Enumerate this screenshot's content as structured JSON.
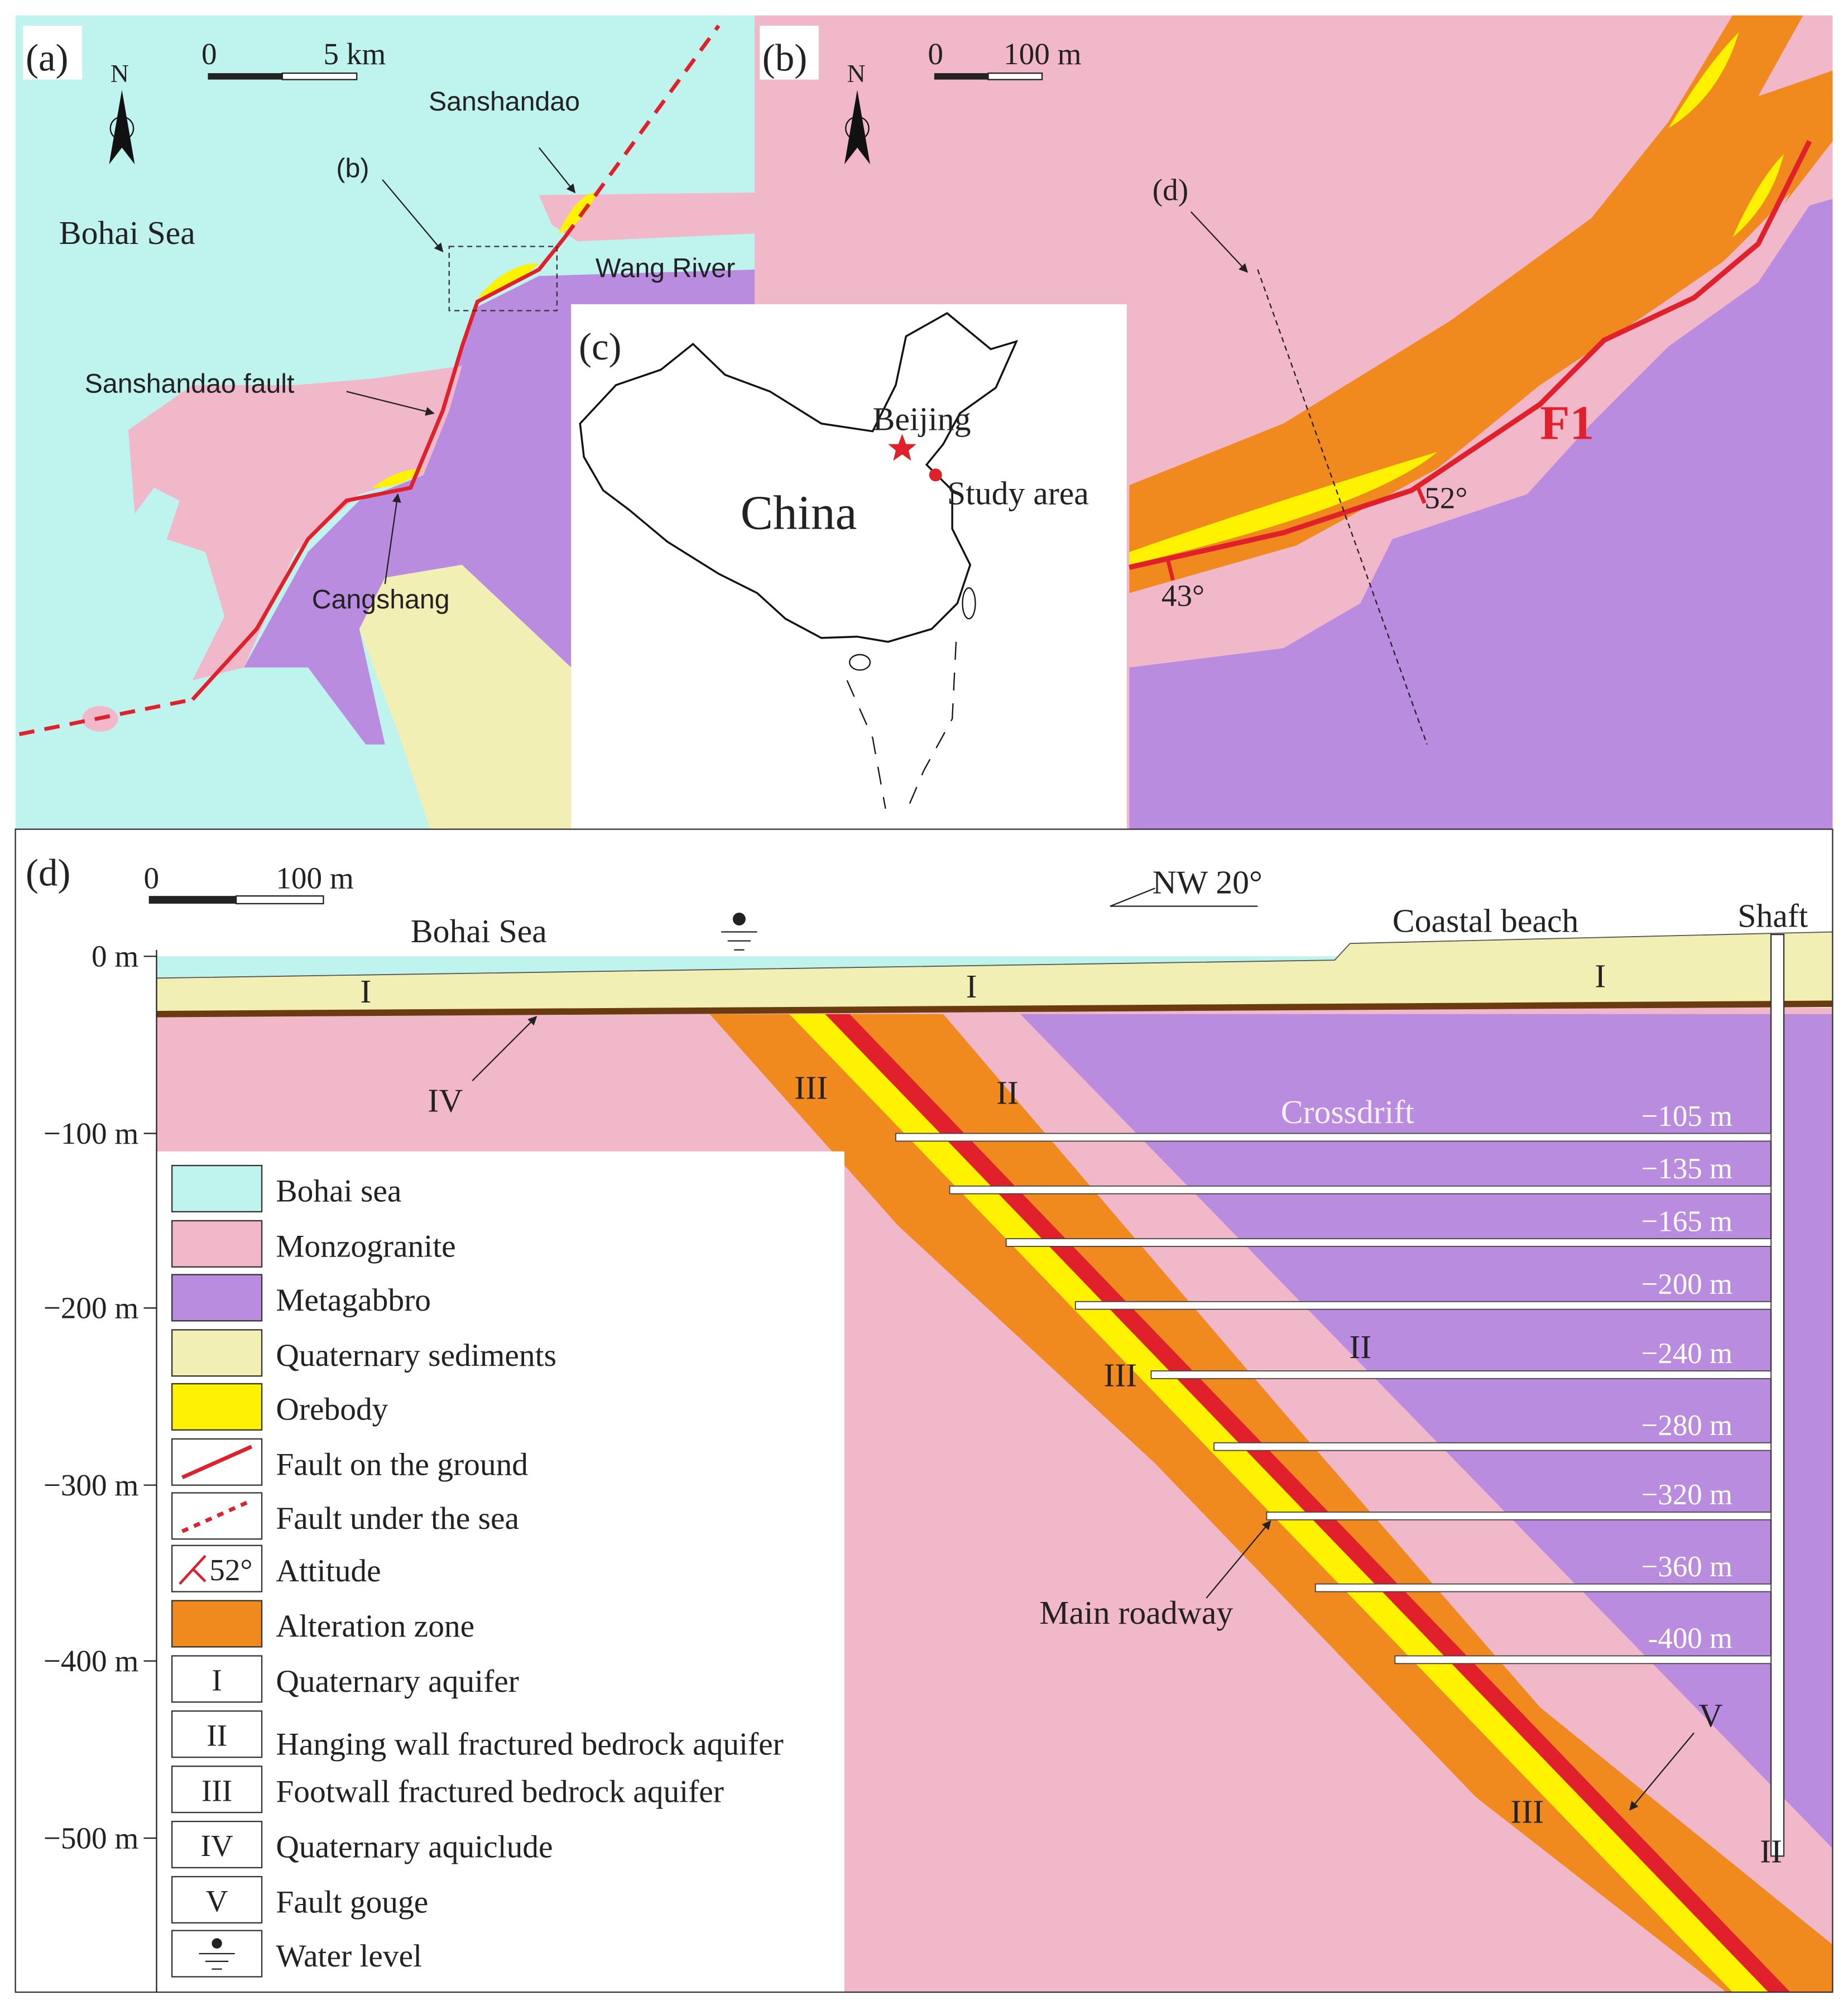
{
  "panel_a": {
    "label": "(a)",
    "scale_start": "0",
    "scale_end": "5 km",
    "north": "N",
    "bohai_sea": "Bohai Sea",
    "sanshandao": "Sanshandao",
    "inset_ref": "(b)",
    "wang_river": "Wang River",
    "fault": "Sanshandao fault",
    "cangshang": "Cangshang"
  },
  "panel_b": {
    "label": "(b)",
    "scale_start": "0",
    "scale_end": "100 m",
    "north": "N",
    "section_ref": "(d)",
    "fault_name": "F1",
    "dip_1": "52°",
    "dip_2": "43°"
  },
  "panel_c": {
    "label": "(c)",
    "country": "China",
    "capital": "Beijing",
    "study_area": "Study area"
  },
  "panel_d": {
    "label": "(d)",
    "scale_start": "0",
    "scale_end": "100 m",
    "direction": "NW 20°",
    "sea": "Bohai Sea",
    "beach": "Coastal beach",
    "shaft": "Shaft",
    "crossdrift": "Crossdrift",
    "main_roadway": "Main roadway",
    "depth_ticks": [
      "0 m",
      "−100 m",
      "−200 m",
      "−300 m",
      "−400 m",
      "−500 m"
    ],
    "levels": [
      "−105 m",
      "−135 m",
      "−165 m",
      "−200 m",
      "−240 m",
      "−280 m",
      "−320 m",
      "−360 m",
      "-400 m"
    ],
    "zones": [
      "I",
      "I",
      "I",
      "IV",
      "III",
      "II",
      "II",
      "III",
      "V",
      "III",
      "II"
    ]
  },
  "legend": [
    {
      "text": "Bohai sea"
    },
    {
      "text": "Monzogranite"
    },
    {
      "text": "Metagabbro"
    },
    {
      "text": "Quaternary sediments"
    },
    {
      "text": "Orebody"
    },
    {
      "text": "Fault on the ground"
    },
    {
      "text": "Fault under the sea"
    },
    {
      "symbol": "52°",
      "text": "Attitude"
    },
    {
      "text": "Alteration zone"
    },
    {
      "symbol": "I",
      "text": "Quaternary aquifer"
    },
    {
      "symbol": "II",
      "text": "Hanging wall fractured bedrock aquifer"
    },
    {
      "symbol": "III",
      "text": "Footwall fractured bedrock aquifer"
    },
    {
      "symbol": "IV",
      "text": "Quaternary aquiclude"
    },
    {
      "symbol": "V",
      "text": "Fault gouge"
    },
    {
      "text": "Water level"
    }
  ]
}
